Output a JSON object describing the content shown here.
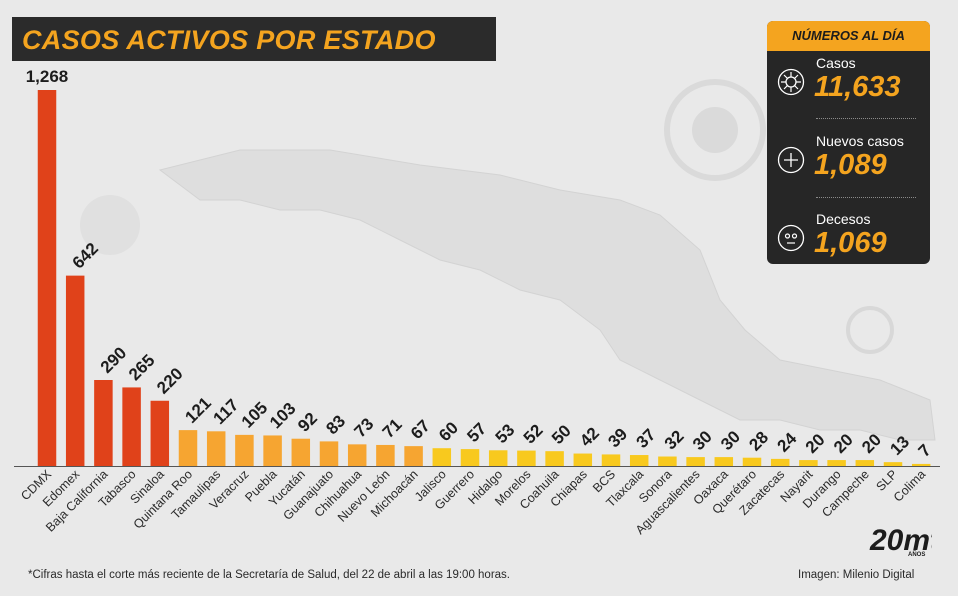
{
  "header": {
    "title": "CASOS ACTIVOS POR ESTADO"
  },
  "panel": {
    "title": "NÚMEROS AL DÍA",
    "stats": [
      {
        "label": "Casos",
        "value": "11,633",
        "icon": "virus-icon"
      },
      {
        "label": "Nuevos casos",
        "value": "1,089",
        "icon": "plus-circle-icon"
      },
      {
        "label": "Decesos",
        "value": "1,069",
        "icon": "face-icon"
      }
    ]
  },
  "footnote": "*Cifras hasta el corte más reciente de la Secretaría de Salud, del 22 de abril a las 19:00 horas.",
  "credit": "Imagen: Milenio Digital",
  "colors": {
    "red": "#e0421a",
    "orange": "#f6a531",
    "yellow": "#f8c91e",
    "accent": "#f4a41f",
    "dark": "#262626"
  },
  "chart_data": {
    "type": "bar",
    "title": "CASOS ACTIVOS POR ESTADO",
    "xlabel": "",
    "ylabel": "",
    "ylim": [
      0,
      1268
    ],
    "grid": false,
    "categories": [
      "CDMX",
      "Edomex",
      "Baja California",
      "Tabasco",
      "Sinaloa",
      "Quintana Roo",
      "Tamaulipas",
      "Veracruz",
      "Puebla",
      "Yucatán",
      "Guanajuato",
      "Chihuahua",
      "Nuevo León",
      "Michoacán",
      "Jalisco",
      "Guerrero",
      "Hidalgo",
      "Morelos",
      "Coahuila",
      "Chiapas",
      "BCS",
      "Tlaxcala",
      "Sonora",
      "Aguascalientes",
      "Oaxaca",
      "Querétaro",
      "Zacatecas",
      "Nayarit",
      "Durango",
      "Campeche",
      "SLP",
      "Colima"
    ],
    "values": [
      1268,
      642,
      290,
      265,
      220,
      121,
      117,
      105,
      103,
      92,
      83,
      73,
      71,
      67,
      60,
      57,
      53,
      52,
      50,
      42,
      39,
      37,
      32,
      30,
      30,
      28,
      24,
      20,
      20,
      20,
      13,
      7
    ],
    "value_labels": [
      "1,268",
      "642",
      "290",
      "265",
      "220",
      "121",
      "117",
      "105",
      "103",
      "92",
      "83",
      "73",
      "71",
      "67",
      "60",
      "57",
      "53",
      "52",
      "50",
      "42",
      "39",
      "37",
      "32",
      "30",
      "30",
      "28",
      "24",
      "20",
      "20",
      "20",
      "13",
      "7"
    ],
    "bar_colors": [
      "red",
      "red",
      "red",
      "red",
      "red",
      "orange",
      "orange",
      "orange",
      "orange",
      "orange",
      "orange",
      "orange",
      "orange",
      "orange",
      "yellow",
      "yellow",
      "yellow",
      "yellow",
      "yellow",
      "yellow",
      "yellow",
      "yellow",
      "yellow",
      "yellow",
      "yellow",
      "yellow",
      "yellow",
      "yellow",
      "yellow",
      "yellow",
      "yellow",
      "yellow"
    ]
  },
  "logo": {
    "text": "20mt",
    "subtext": "AÑOS"
  }
}
